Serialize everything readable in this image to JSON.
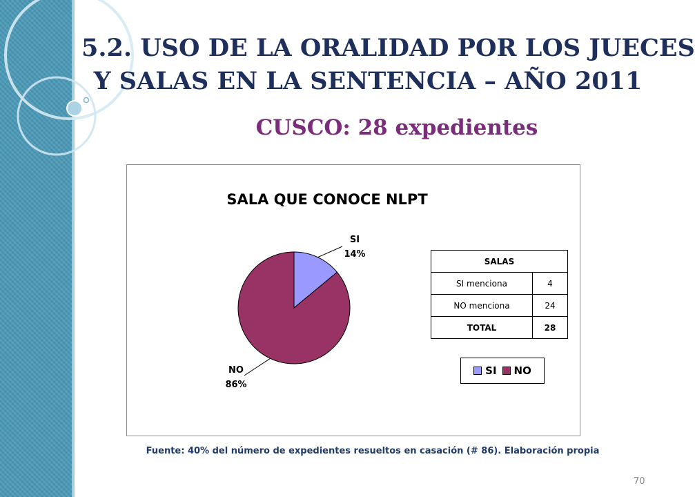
{
  "slide": {
    "title_line1": "5.2. USO DE LA ORALIDAD POR LOS JUECES",
    "title_line2": "Y SALAS EN LA SENTENCIA – AÑO 2011",
    "subtitle": "CUSCO: 28 expedientes",
    "source": "Fuente: 40% del número de expedientes resueltos en casación (# 86). Elaboración propia",
    "page_number": "70"
  },
  "colors": {
    "sidebar": "#4a98b6",
    "title": "#1f2f5c",
    "subtitle": "#7a2d7a",
    "si": "#9999ff",
    "no": "#993366"
  },
  "table": {
    "header": "SALAS",
    "rows": [
      {
        "label": "SI menciona",
        "value": "4"
      },
      {
        "label": "NO  menciona",
        "value": "24"
      },
      {
        "label": "TOTAL",
        "value": "28"
      }
    ]
  },
  "chart_data": {
    "type": "pie",
    "title": "SALA QUE CONOCE NLPT",
    "categories": [
      "SI",
      "NO"
    ],
    "values": [
      14,
      86
    ],
    "labels": [
      {
        "name": "SI",
        "pct": "14%"
      },
      {
        "name": "NO",
        "pct": "86%"
      }
    ],
    "legend": [
      "SI",
      "NO"
    ],
    "legend_position": "bottom-right",
    "colors": [
      "#9999ff",
      "#993366"
    ]
  }
}
